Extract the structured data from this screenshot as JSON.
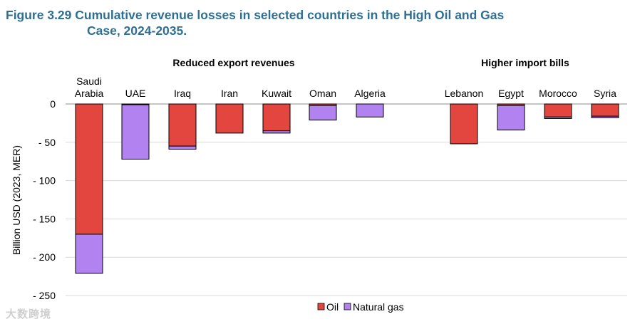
{
  "title_line1": "Figure 3.29 Cumulative revenue losses in selected countries in the High Oil and Gas",
  "title_line2": "Case, 2024-2035.",
  "watermark": "大数跨境",
  "chart_data": {
    "type": "bar",
    "stacked": true,
    "groups": [
      {
        "label": "Reduced export revenues",
        "categories": [
          "Saudi Arabia",
          "UAE",
          "Iraq",
          "Iran",
          "Kuwait",
          "Oman",
          "Algeria"
        ]
      },
      {
        "label": "Higher import bills",
        "categories": [
          "Lebanon",
          "Egypt",
          "Morocco",
          "Syria"
        ]
      }
    ],
    "categories": [
      "Saudi Arabia",
      "UAE",
      "Iraq",
      "Iran",
      "Kuwait",
      "Oman",
      "Algeria",
      "Lebanon",
      "Egypt",
      "Morocco",
      "Syria"
    ],
    "category_labels": [
      [
        "Saudi",
        "Arabia"
      ],
      [
        "UAE"
      ],
      [
        "Iraq"
      ],
      [
        "Iran"
      ],
      [
        "Kuwait"
      ],
      [
        "Oman"
      ],
      [
        "Algeria"
      ],
      [
        "Lebanon"
      ],
      [
        "Egypt"
      ],
      [
        "Morocco"
      ],
      [
        "Syria"
      ]
    ],
    "series": [
      {
        "name": "Oil",
        "color": "#e2463f",
        "values": [
          -170,
          -1,
          -55,
          -38,
          -35,
          -2,
          0,
          -52,
          -2,
          -17,
          -16
        ]
      },
      {
        "name": "Natural gas",
        "color": "#b283f0",
        "values": [
          -51,
          -71,
          -4,
          0,
          -3,
          -19,
          -17,
          0,
          -32,
          -2,
          -2
        ]
      }
    ],
    "ylabel": "Billion USD (2023, MER)",
    "ylim": [
      -250,
      0
    ],
    "yticks": [
      0,
      -50,
      -100,
      -150,
      -200,
      -250
    ],
    "ytick_labels": [
      "0",
      "- 50",
      "- 100",
      "- 150",
      "- 200",
      "- 250"
    ],
    "legend": [
      "Oil",
      "Natural gas"
    ],
    "legend_position": "bottom"
  }
}
